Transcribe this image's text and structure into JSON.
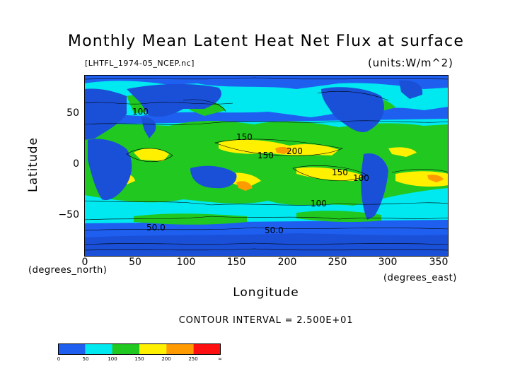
{
  "title": "Monthly Mean Latent Heat Net Flux at surface",
  "filename": "[LHTFL_1974-05_NCEP.nc]",
  "units": "(units:W/m^2)",
  "xlabel": "Longitude",
  "ylabel": "Latitude",
  "x_unit_note": "(degrees_north)",
  "y_unit_note": "(degrees_east)",
  "contour_interval": "CONTOUR INTERVAL = 2.500E+01",
  "x_ticks": [
    "0",
    "50",
    "100",
    "150",
    "200",
    "250",
    "300",
    "350"
  ],
  "y_ticks": [
    "50",
    "0",
    "−50"
  ],
  "contour_labels": [
    "100",
    "150",
    "200",
    "150",
    "100",
    "50.0",
    "50.0",
    "100",
    "150"
  ],
  "colorbar": {
    "labels": [
      "0",
      "50",
      "100",
      "150",
      "200",
      "250",
      "∞"
    ],
    "colors": [
      "#1f5ff0",
      "#00e8f0",
      "#20c820",
      "#fff000",
      "#ff9a00",
      "#ff1010"
    ]
  },
  "chart_data": {
    "type": "heatmap",
    "title": "Monthly Mean Latent Heat Net Flux at surface",
    "xlabel": "Longitude",
    "ylabel": "Latitude",
    "xlim": [
      0,
      360
    ],
    "ylim": [
      -90,
      90
    ],
    "units": "W/m^2",
    "levels": [
      0,
      25,
      50,
      75,
      100,
      125,
      150,
      175,
      200,
      225,
      250
    ]
  }
}
